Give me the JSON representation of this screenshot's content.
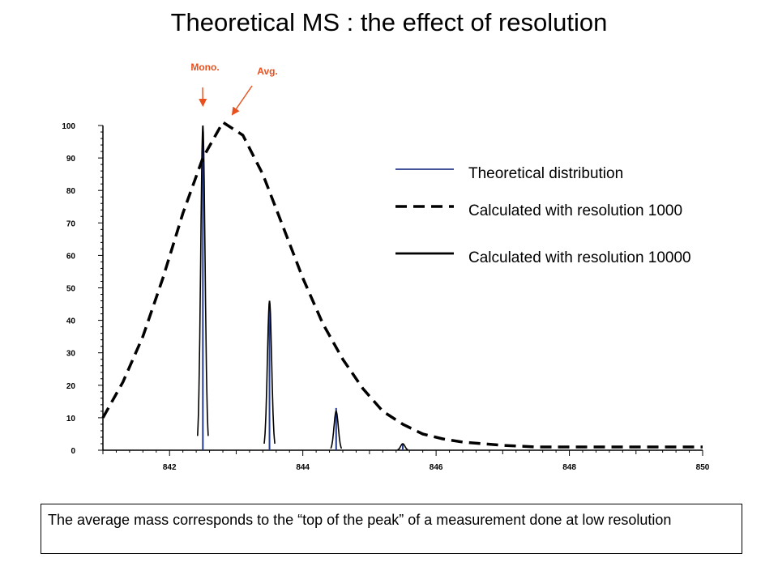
{
  "page": {
    "title": "Theoretical MS : the effect of resolution",
    "caption": "The average mass corresponds to the “top of the peak” of a measurement done at low resolution"
  },
  "chart_data": {
    "type": "line",
    "title": "Theoretical MS : the effect of resolution",
    "xlabel": "",
    "ylabel": "",
    "xlim": [
      841.0,
      850.0
    ],
    "ylim": [
      0,
      100
    ],
    "x_ticks": [
      842,
      844,
      846,
      848,
      850
    ],
    "y_ticks": [
      0,
      10,
      20,
      30,
      40,
      50,
      60,
      70,
      80,
      90,
      100
    ],
    "grid": false,
    "legend_position": "right",
    "series": [
      {
        "name": "Theoretical distribution",
        "style": "thin-blue",
        "color": "#283c8c",
        "points": [
          [
            842.5,
            100
          ],
          [
            843.5,
            46
          ],
          [
            844.5,
            13
          ],
          [
            845.5,
            2
          ]
        ]
      },
      {
        "name": "Calculated with resolution 1000",
        "style": "dashed",
        "color": "#000000",
        "x": [
          841.0,
          841.3,
          841.6,
          841.9,
          842.2,
          842.5,
          842.8,
          843.1,
          843.4,
          843.7,
          844.0,
          844.3,
          844.6,
          844.9,
          845.2,
          845.5,
          845.8,
          846.1,
          846.4,
          846.7,
          847.0,
          847.5,
          848.0,
          848.5,
          849.0,
          849.5,
          850.0
        ],
        "y": [
          10,
          21,
          35,
          53,
          73,
          90,
          101,
          97,
          85,
          69,
          53,
          39,
          28,
          19,
          12,
          8,
          5,
          3.5,
          2.5,
          2,
          1.5,
          1,
          1,
          1,
          1,
          1,
          1
        ]
      },
      {
        "name": "Calculated with resolution 10000",
        "style": "solid-black",
        "color": "#000000",
        "peaks": [
          {
            "x": 842.5,
            "y": 100
          },
          {
            "x": 843.5,
            "y": 46
          },
          {
            "x": 844.5,
            "y": 12
          },
          {
            "x": 845.5,
            "y": 2
          }
        ],
        "peak_width": 0.08
      }
    ],
    "annotations": [
      {
        "text": "Mono.",
        "target_x": 842.5,
        "target_y": 100,
        "color": "#e8501e"
      },
      {
        "text": "Avg.",
        "target_x": 842.8,
        "target_y": 101,
        "color": "#e8501e"
      }
    ]
  },
  "colors": {
    "annotation": "#e8501e",
    "theoretical": "#283c8c"
  }
}
